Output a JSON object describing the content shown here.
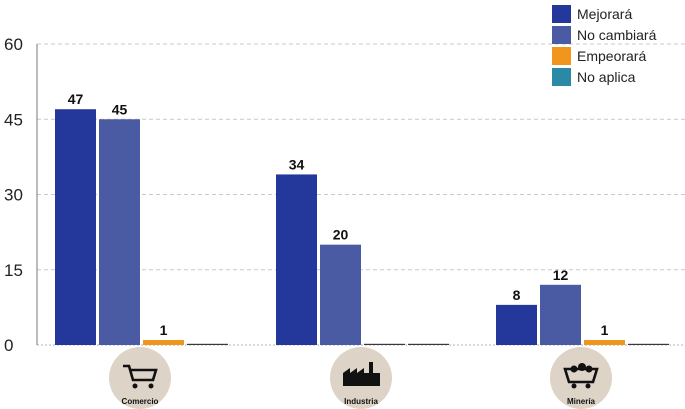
{
  "chart_data": {
    "type": "bar",
    "categories": [
      "Comercio",
      "Industria",
      "Minería"
    ],
    "series": [
      {
        "name": "Mejorará",
        "values": [
          47,
          34,
          8
        ],
        "color": "#23389a"
      },
      {
        "name": "No cambiará",
        "values": [
          45,
          20,
          12
        ],
        "color": "#4a5aa3"
      },
      {
        "name": "Empeorará",
        "values": [
          1,
          0,
          1
        ],
        "color": "#f0961e"
      },
      {
        "name": "No aplica",
        "values": [
          0,
          0,
          0
        ],
        "color": "#2a8aa6"
      }
    ],
    "data_labels": [
      [
        "47",
        "34",
        "8"
      ],
      [
        "45",
        "20",
        "12"
      ],
      [
        "1",
        "",
        "1"
      ],
      [
        "",
        "",
        ""
      ]
    ],
    "title": "",
    "xlabel": "",
    "ylabel": "",
    "ylim": [
      0,
      60
    ],
    "yticks": [
      0,
      15,
      30,
      45,
      60
    ],
    "grid": true,
    "legend_position": "top-right",
    "category_icons": [
      "cart-icon",
      "factory-icon",
      "mine-cart-icon"
    ]
  }
}
